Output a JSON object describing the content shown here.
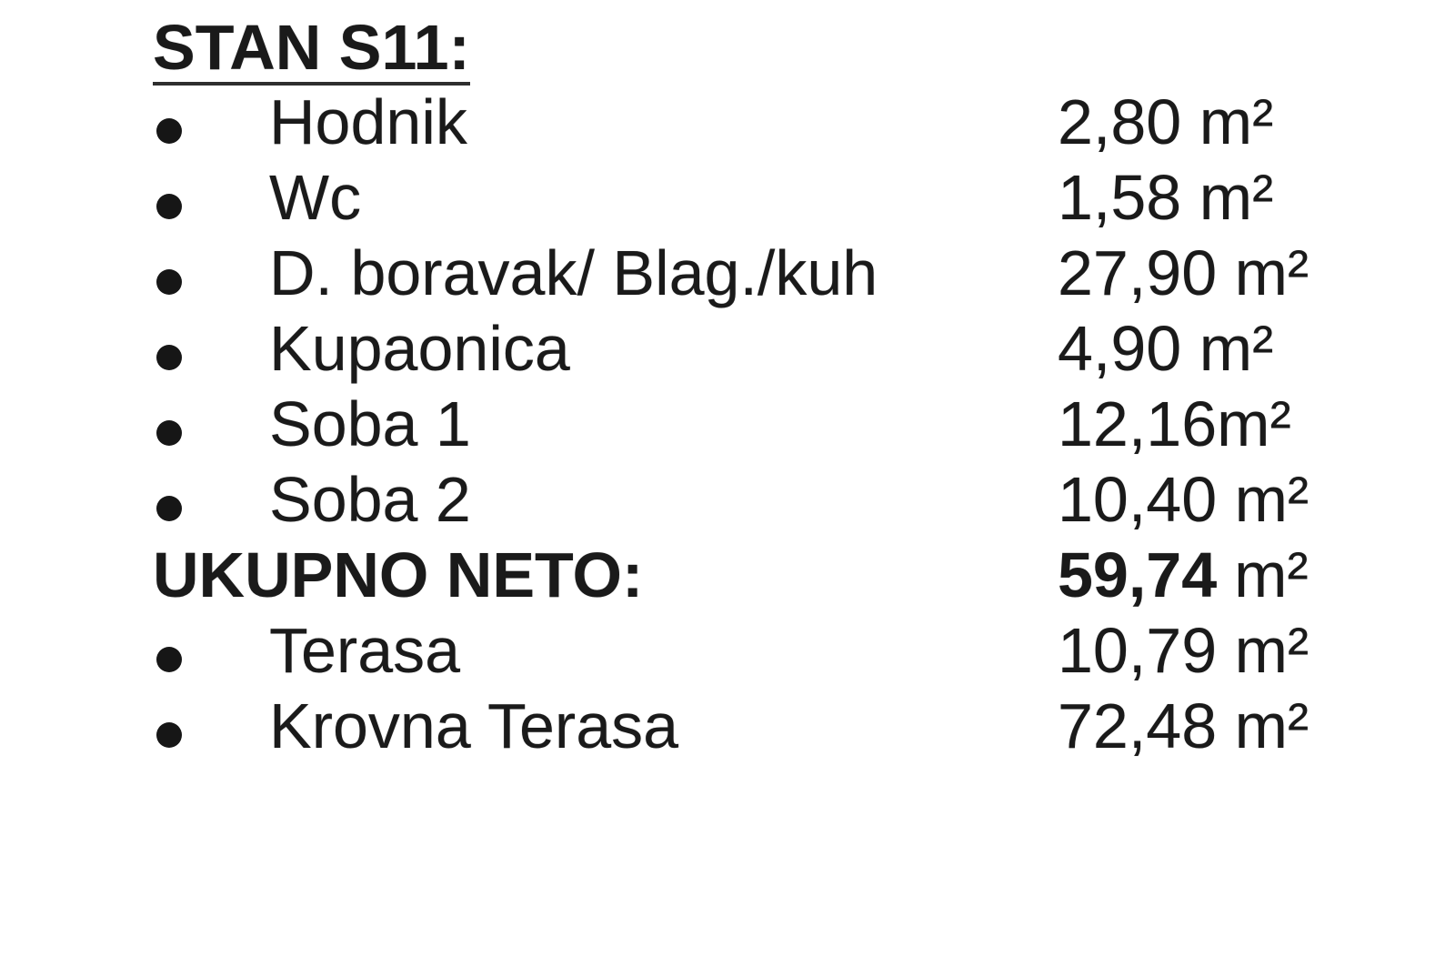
{
  "page": {
    "background_color": "#ffffff",
    "text_color": "#1a1a1a"
  },
  "listing": {
    "title": "STAN S11:",
    "rooms": [
      {
        "label": "Hodnik",
        "area": "2,80 m²"
      },
      {
        "label": "Wc",
        "area": "1,58 m²"
      },
      {
        "label": "D. boravak/ Blag./kuh",
        "area": "27,90 m²"
      },
      {
        "label": "Kupaonica",
        "area": "4,90 m²"
      },
      {
        "label": "Soba 1",
        "area": "12,16m²"
      },
      {
        "label": "Soba 2",
        "area": "10,40 m²"
      }
    ],
    "total": {
      "label": "UKUPNO NETO:",
      "value": "59,74",
      "unit": "m²"
    },
    "outdoor": [
      {
        "label": "Terasa",
        "area": "10,79 m²"
      },
      {
        "label": "Krovna Terasa",
        "area": "72,48 m²"
      }
    ]
  }
}
